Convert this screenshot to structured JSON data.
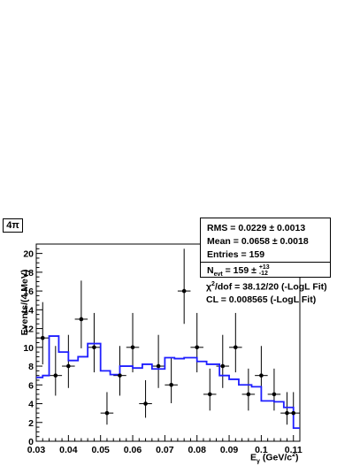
{
  "chart_data": {
    "type": "scatter",
    "tag": "4π",
    "xlabel": "E",
    "xlabel_sub": "γ",
    "xlabel_unit": " (GeV/c",
    "xlabel_unit_sup": "2",
    "xlabel_end": ")",
    "ylabel": "Events/(4 MeV)",
    "xlim": [
      0.03,
      0.112
    ],
    "ylim": [
      0,
      21
    ],
    "x_ticks": [
      "0.03",
      "0.04",
      "0.05",
      "0.06",
      "0.07",
      "0.08",
      "0.09",
      "0.1",
      "0.11"
    ],
    "y_ticks": [
      "0",
      "2",
      "4",
      "6",
      "8",
      "10",
      "12",
      "14",
      "16",
      "18",
      "20"
    ],
    "data_points": {
      "x": [
        0.032,
        0.036,
        0.04,
        0.044,
        0.048,
        0.052,
        0.056,
        0.06,
        0.064,
        0.068,
        0.072,
        0.076,
        0.08,
        0.084,
        0.088,
        0.092,
        0.096,
        0.1,
        0.104,
        0.108
      ],
      "y": [
        11,
        7,
        8,
        13,
        10,
        3,
        7,
        10,
        4,
        8,
        6,
        16,
        10,
        5,
        8,
        10,
        5,
        7,
        5,
        3
      ]
    },
    "extra_point": {
      "x": 0.11,
      "y": 3
    },
    "fit_curve": {
      "x": [
        0.03,
        0.032,
        0.034,
        0.037,
        0.04,
        0.043,
        0.046,
        0.05,
        0.053,
        0.056,
        0.06,
        0.063,
        0.066,
        0.07,
        0.073,
        0.076,
        0.08,
        0.083,
        0.087,
        0.09,
        0.093,
        0.097,
        0.1,
        0.104,
        0.107,
        0.11,
        0.112
      ],
      "y": [
        6.8,
        7.0,
        11.2,
        9.5,
        8.6,
        9.0,
        10.4,
        7.5,
        7.1,
        8.0,
        7.8,
        8.2,
        7.7,
        8.9,
        8.8,
        8.9,
        8.5,
        8.2,
        7.0,
        6.6,
        6.0,
        5.8,
        4.3,
        4.2,
        3.6,
        1.4,
        1.4
      ]
    },
    "stats": {
      "rms_label": "RMS = ",
      "rms_value": "0.0229",
      "rms_err": "0.0013",
      "mean_label": "Mean = ",
      "mean_value": "0.0658",
      "mean_err": "0.0018",
      "entries_label": "Entries = ",
      "entries_value": "159",
      "nevt_label": "N",
      "nevt_sub": "evt",
      "nevt_value": " =  159 ±",
      "nevt_up": "+13",
      "nevt_down": "-12"
    },
    "fit_text": {
      "chi2_label": "χ",
      "chi2_sup": "2",
      "chi2_rest": "/dof = 38.12/20 (-LogL Fit)",
      "cl": "CL = 0.008565 (-LogL Fit)"
    },
    "colors": {
      "fit": "#1f1fff",
      "points": "#000000"
    }
  }
}
